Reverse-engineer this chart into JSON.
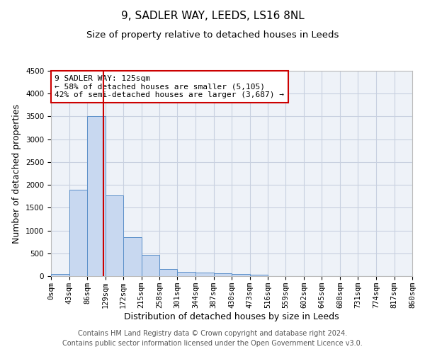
{
  "title": "9, SADLER WAY, LEEDS, LS16 8NL",
  "subtitle": "Size of property relative to detached houses in Leeds",
  "xlabel": "Distribution of detached houses by size in Leeds",
  "ylabel": "Number of detached properties",
  "footer_line1": "Contains HM Land Registry data © Crown copyright and database right 2024.",
  "footer_line2": "Contains public sector information licensed under the Open Government Licence v3.0.",
  "annotation_line1": "9 SADLER WAY: 125sqm",
  "annotation_line2": "← 58% of detached houses are smaller (5,105)",
  "annotation_line3": "42% of semi-detached houses are larger (3,687) →",
  "bar_edges": [
    0,
    43,
    86,
    129,
    172,
    215,
    258,
    301,
    344,
    387,
    430,
    473,
    516,
    559,
    602,
    645,
    688,
    731,
    774,
    817,
    860
  ],
  "bar_heights": [
    40,
    1900,
    3500,
    1775,
    850,
    460,
    160,
    100,
    70,
    55,
    40,
    30,
    0,
    0,
    0,
    0,
    0,
    0,
    0,
    0
  ],
  "vline_x": 125,
  "ylim": [
    0,
    4500
  ],
  "bar_color": "#c8d8f0",
  "bar_edge_color": "#5b8fc9",
  "vline_color": "#cc0000",
  "grid_color": "#c8d0e0",
  "bg_color": "#eef2f8",
  "annotation_box_color": "#cc0000",
  "title_fontsize": 11,
  "subtitle_fontsize": 9.5,
  "axis_label_fontsize": 9,
  "tick_fontsize": 7.5,
  "annotation_fontsize": 8,
  "footer_fontsize": 7
}
